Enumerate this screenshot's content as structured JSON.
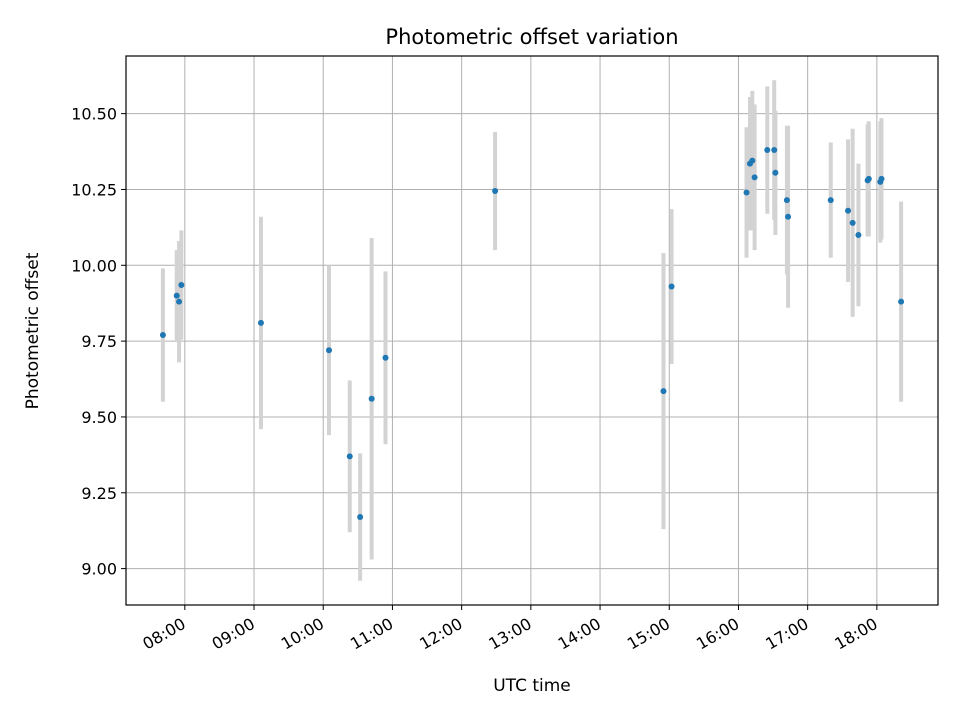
{
  "chart_data": {
    "type": "scatter",
    "title": "Photometric offset variation",
    "xlabel": "UTC time",
    "ylabel": "Photometric offset",
    "xlim": [
      "07:09",
      "18:53"
    ],
    "ylim": [
      8.88,
      10.69
    ],
    "x_ticks": [
      "08:00",
      "09:00",
      "10:00",
      "11:00",
      "12:00",
      "13:00",
      "14:00",
      "15:00",
      "16:00",
      "17:00",
      "18:00"
    ],
    "y_ticks": [
      "9.00",
      "9.25",
      "9.50",
      "9.75",
      "10.00",
      "10.25",
      "10.50"
    ],
    "grid": true,
    "point_color": "#1f77b4",
    "errorbar_color": "#d3d3d3",
    "series": [
      {
        "points": [
          {
            "time": "07:41",
            "y": 9.77,
            "err": 0.22
          },
          {
            "time": "07:53",
            "y": 9.9,
            "err": 0.15
          },
          {
            "time": "07:55",
            "y": 9.88,
            "err": 0.2
          },
          {
            "time": "07:57",
            "y": 9.935,
            "err": 0.18
          },
          {
            "time": "09:06",
            "y": 9.81,
            "err": 0.35
          },
          {
            "time": "10:05",
            "y": 9.72,
            "err": 0.28
          },
          {
            "time": "10:23",
            "y": 9.37,
            "err": 0.25
          },
          {
            "time": "10:32",
            "y": 9.17,
            "err": 0.21
          },
          {
            "time": "10:42",
            "y": 9.56,
            "err": 0.53
          },
          {
            "time": "10:54",
            "y": 9.695,
            "err": 0.285
          },
          {
            "time": "12:29",
            "y": 10.245,
            "err": 0.195
          },
          {
            "time": "14:55",
            "y": 9.585,
            "err": 0.455
          },
          {
            "time": "15:02",
            "y": 9.93,
            "err": 0.255
          },
          {
            "time": "16:07",
            "y": 10.24,
            "err": 0.215
          },
          {
            "time": "16:10",
            "y": 10.335,
            "err": 0.22
          },
          {
            "time": "16:12",
            "y": 10.345,
            "err": 0.23
          },
          {
            "time": "16:14",
            "y": 10.29,
            "err": 0.24
          },
          {
            "time": "16:25",
            "y": 10.38,
            "err": 0.21
          },
          {
            "time": "16:31",
            "y": 10.38,
            "err": 0.23
          },
          {
            "time": "16:32",
            "y": 10.305,
            "err": 0.205
          },
          {
            "time": "16:42",
            "y": 10.215,
            "err": 0.245
          },
          {
            "time": "16:43",
            "y": 10.16,
            "err": 0.3
          },
          {
            "time": "17:20",
            "y": 10.215,
            "err": 0.19
          },
          {
            "time": "17:35",
            "y": 10.18,
            "err": 0.235
          },
          {
            "time": "17:39",
            "y": 10.14,
            "err": 0.31
          },
          {
            "time": "17:44",
            "y": 10.1,
            "err": 0.235
          },
          {
            "time": "17:52",
            "y": 10.28,
            "err": 0.185
          },
          {
            "time": "17:53",
            "y": 10.285,
            "err": 0.19
          },
          {
            "time": "18:03",
            "y": 10.275,
            "err": 0.2
          },
          {
            "time": "18:04",
            "y": 10.285,
            "err": 0.2
          },
          {
            "time": "18:21",
            "y": 9.88,
            "err": 0.33
          }
        ]
      }
    ]
  }
}
